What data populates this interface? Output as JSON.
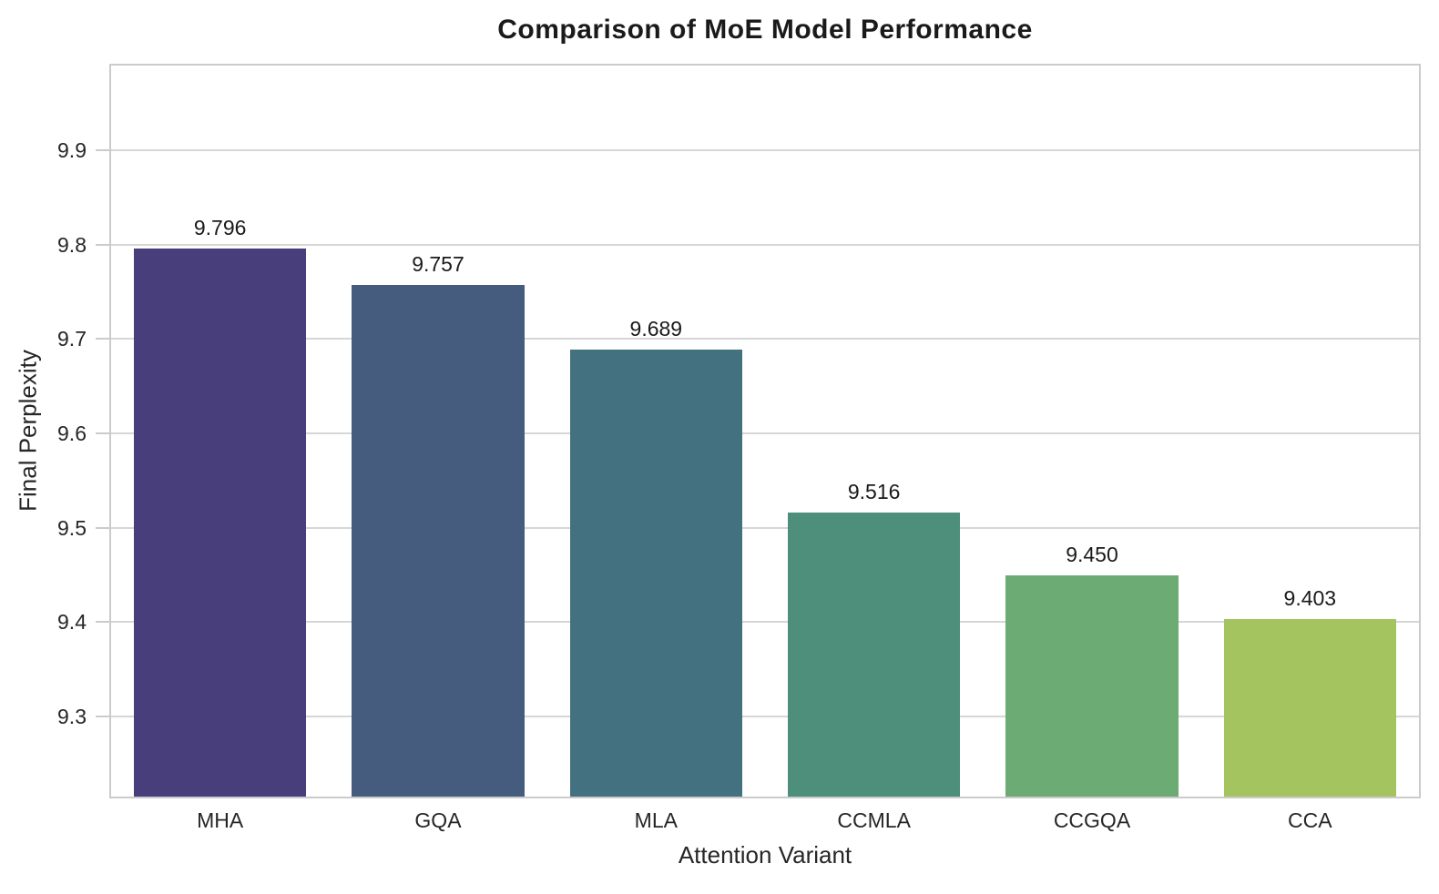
{
  "chart_data": {
    "type": "bar",
    "title": "Comparison of MoE Model Performance",
    "xlabel": "Attention Variant",
    "ylabel": "Final Perplexity",
    "categories": [
      "MHA",
      "GQA",
      "MLA",
      "CCMLA",
      "CCGQA",
      "CCA"
    ],
    "values": [
      9.796,
      9.757,
      9.689,
      9.516,
      9.45,
      9.403
    ],
    "value_labels": [
      "9.796",
      "9.757",
      "9.689",
      "9.516",
      "9.450",
      "9.403"
    ],
    "bar_colors": [
      "#483e7b",
      "#465c7f",
      "#44717f",
      "#4d8f7b",
      "#6cab74",
      "#a3c45f"
    ],
    "yticks": [
      9.3,
      9.4,
      9.5,
      9.6,
      9.7,
      9.8,
      9.9
    ],
    "ytick_labels": [
      "9.3",
      "9.4",
      "9.5",
      "9.6",
      "9.7",
      "9.8",
      "9.9"
    ],
    "ylim": [
      9.215,
      9.99
    ],
    "bar_width_fraction": 0.79,
    "grid": "horizontal",
    "legend": "none",
    "style": {
      "grid_color": "#d6d6d6",
      "spine_color": "#cbcbcb",
      "title_color": "#1a1a1a",
      "tick_color": "#262626",
      "label_color": "#262626",
      "background_color": "#ffffff"
    }
  }
}
